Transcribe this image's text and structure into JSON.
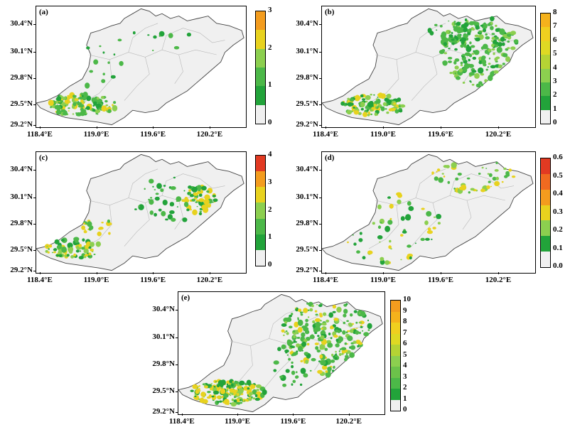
{
  "colors": {
    "land": "#f0f0f0",
    "boundary": "#444444",
    "internal_boundary": "#b8b8b8",
    "green_dark": "#22a33a",
    "green": "#4cb848",
    "green_light": "#8ccf4f",
    "yellow": "#e8d21e",
    "orange": "#f39c1e",
    "red": "#e23a22"
  },
  "axis_labels": {
    "lat": [
      "30.4°N",
      "30.1°N",
      "29.8°N",
      "29.5°N",
      "29.2°N"
    ],
    "lon": [
      "118.4°E",
      "119.0°E",
      "119.6°E",
      "120.2°E"
    ]
  },
  "panels": [
    {
      "label": "(a)",
      "colorbar_ticks": [
        "3",
        "2",
        "1",
        "0"
      ],
      "colorbar_colors": [
        "#f39c1e",
        "#e8d21e",
        "#8ccf4f",
        "#4cb848",
        "#22a33a",
        "#f0f0f0"
      ]
    },
    {
      "label": "(b)",
      "colorbar_ticks": [
        "8",
        "7",
        "6",
        "5",
        "4",
        "3",
        "2",
        "1",
        "0"
      ],
      "colorbar_colors": [
        "#f5b21c",
        "#f0cf1f",
        "#dfd923",
        "#b5d334",
        "#8ccf4f",
        "#4cb848",
        "#22a33a",
        "#f0f0f0"
      ]
    },
    {
      "label": "(c)",
      "colorbar_ticks": [
        "4",
        "3",
        "2",
        "1",
        "0"
      ],
      "colorbar_colors": [
        "#e23a22",
        "#f39c1e",
        "#e8d21e",
        "#8ccf4f",
        "#4cb848",
        "#22a33a",
        "#f0f0f0"
      ]
    },
    {
      "label": "(d)",
      "colorbar_ticks": [
        "0.6",
        "0.5",
        "0.4",
        "0.3",
        "0.2",
        "0.1",
        "0.0"
      ],
      "colorbar_colors": [
        "#e23a22",
        "#f06a20",
        "#f39c1e",
        "#e8d21e",
        "#8ccf4f",
        "#22a33a",
        "#f0f0f0"
      ]
    },
    {
      "label": "(e)",
      "colorbar_ticks": [
        "10",
        "9",
        "8",
        "7",
        "6",
        "5",
        "4",
        "3",
        "2",
        "1",
        "0"
      ],
      "colorbar_colors": [
        "#f39c1e",
        "#f5b21c",
        "#f0cf1f",
        "#dfd923",
        "#b5d334",
        "#8ccf4f",
        "#6cc24a",
        "#4cb848",
        "#22a33a",
        "#f0f0f0"
      ]
    }
  ]
}
